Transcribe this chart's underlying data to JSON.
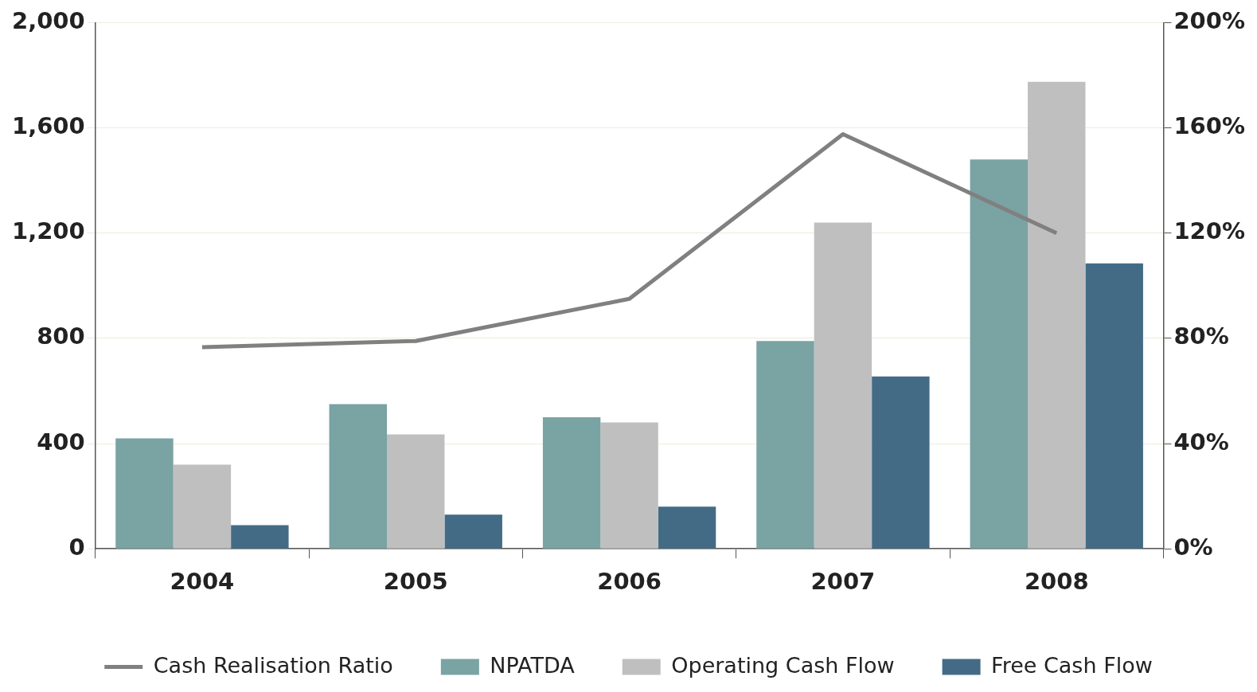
{
  "chart_data": {
    "type": "bar",
    "categories": [
      "2004",
      "2005",
      "2006",
      "2007",
      "2008"
    ],
    "series": [
      {
        "name": "NPATDA",
        "color": "#7aa3a3",
        "values": [
          420,
          550,
          500,
          790,
          1480
        ]
      },
      {
        "name": "Operating Cash Flow",
        "color": "#bfbfbf",
        "values": [
          320,
          435,
          480,
          1240,
          1775
        ]
      },
      {
        "name": "Free Cash Flow",
        "color": "#436b86",
        "values": [
          90,
          130,
          160,
          655,
          1085
        ]
      },
      {
        "name": "Cash Realisation Ratio",
        "type": "line",
        "axis": "y2",
        "color": "#808080",
        "values": [
          76.6,
          79,
          95,
          157.6,
          120
        ]
      }
    ],
    "ylim": [
      0,
      2000
    ],
    "yticks": [
      {
        "value": 0,
        "label": "0"
      },
      {
        "value": 400,
        "label": "400"
      },
      {
        "value": 800,
        "label": "800"
      },
      {
        "value": 1200,
        "label": "1,200"
      },
      {
        "value": 1600,
        "label": "1,600"
      },
      {
        "value": 2000,
        "label": "2,000"
      }
    ],
    "y2lim": [
      0,
      200
    ],
    "y2ticks": [
      {
        "value": 0,
        "label": "0%"
      },
      {
        "value": 40,
        "label": "40%"
      },
      {
        "value": 80,
        "label": "80%"
      },
      {
        "value": 120,
        "label": "120%"
      },
      {
        "value": 160,
        "label": "160%"
      },
      {
        "value": 200,
        "label": "200%"
      }
    ],
    "grid": "y",
    "legend": "bottom",
    "marker": "none",
    "line_style": "solid"
  }
}
